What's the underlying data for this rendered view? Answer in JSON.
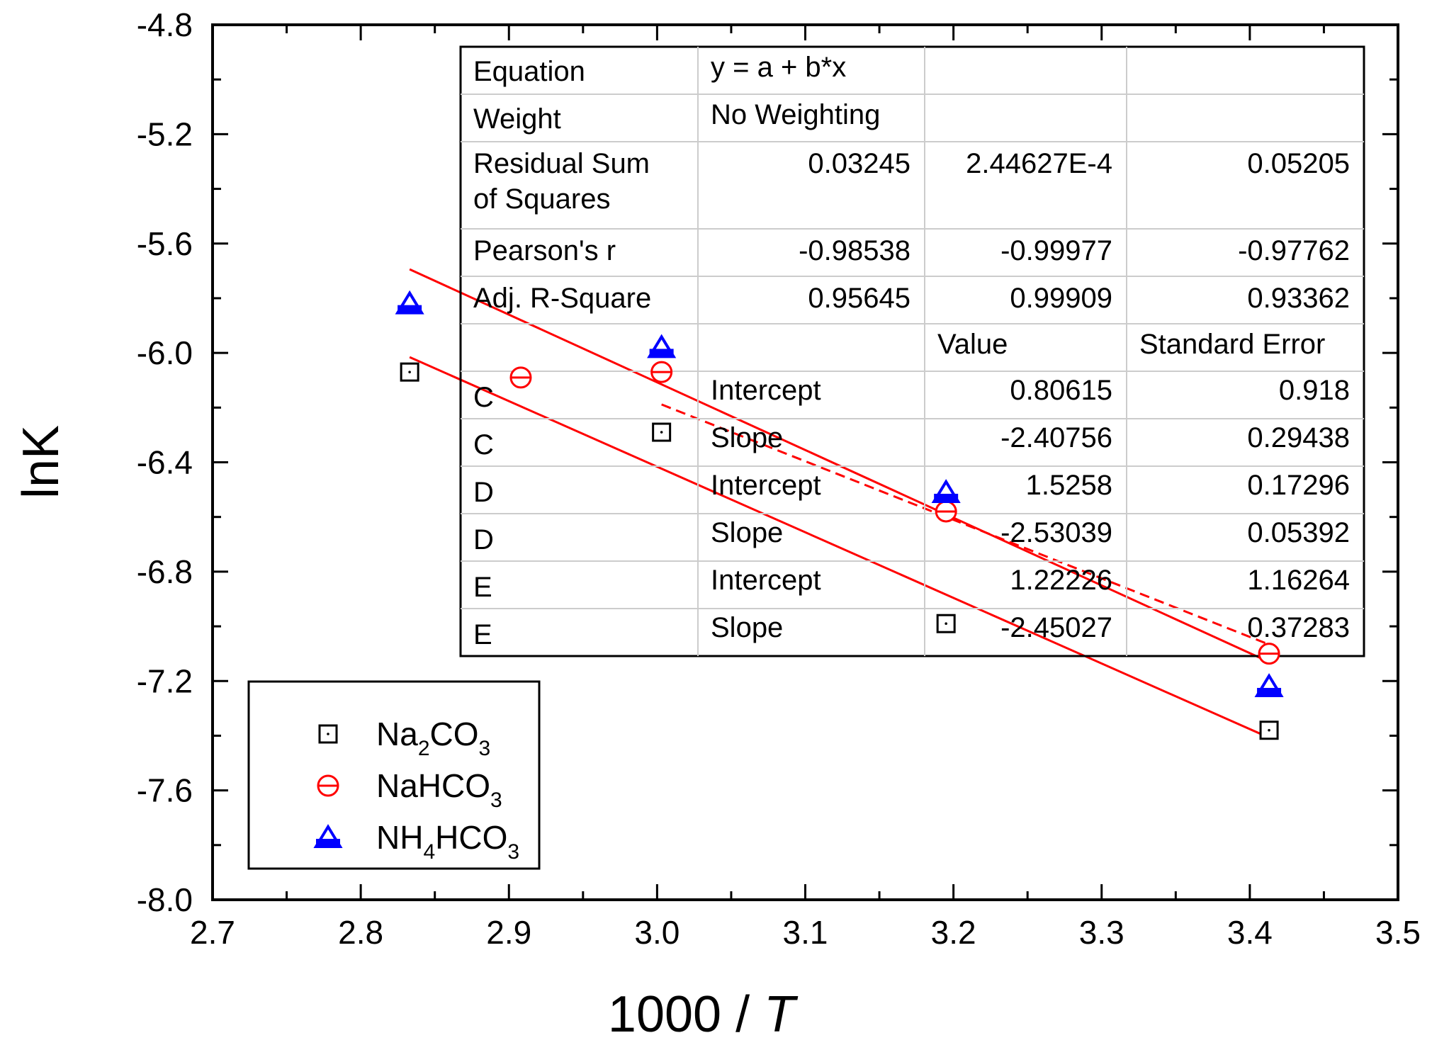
{
  "chart_data": {
    "type": "scatter",
    "xlabel_prefix": "1000 / ",
    "xlabel_var": "T",
    "ylabel": "lnK",
    "xlim": [
      2.7,
      3.5
    ],
    "ylim": [
      -8.0,
      -4.8
    ],
    "xticks": [
      "2.7",
      "2.8",
      "2.9",
      "3.0",
      "3.1",
      "3.2",
      "3.3",
      "3.4",
      "3.5"
    ],
    "yticks": [
      "-4.8",
      "-5.2",
      "-5.6",
      "-6.0",
      "-6.4",
      "-6.8",
      "-7.2",
      "-7.6",
      "-8.0"
    ],
    "series": [
      {
        "name": "Na2CO3",
        "legend": {
          "base": "Na",
          "sub1": "2",
          "mid": "CO",
          "sub2": "3"
        },
        "marker": "square",
        "color": "#000000",
        "x": [
          2.833,
          3.003,
          3.195,
          3.413
        ],
        "y": [
          -6.07,
          -6.29,
          -6.99,
          -7.38
        ],
        "fit": {
          "intercept": 0.80615,
          "slope": -2.40756,
          "x_range": [
            2.833,
            3.413
          ],
          "style": "solid"
        }
      },
      {
        "name": "NaHCO3",
        "legend": {
          "base": "NaHCO",
          "sub1": "",
          "mid": "",
          "sub2": "3"
        },
        "marker": "circle",
        "color": "#ff0000",
        "x": [
          2.908,
          3.003,
          3.195,
          3.413
        ],
        "y": [
          -6.09,
          -6.07,
          -6.58,
          -7.1
        ],
        "fit": {
          "intercept": 1.5258,
          "slope": -2.53039,
          "x_range": [
            3.003,
            3.413
          ],
          "style": "dashed"
        }
      },
      {
        "name": "NH4HCO3",
        "legend": {
          "base": "NH",
          "sub1": "4",
          "mid": "HCO",
          "sub2": "3"
        },
        "marker": "triangle",
        "color": "#0000ff",
        "x": [
          2.833,
          3.003,
          3.195,
          3.413
        ],
        "y": [
          -5.82,
          -5.98,
          -6.51,
          -7.22
        ],
        "fit": {
          "intercept": 1.22226,
          "slope": -2.45027,
          "x_range": [
            2.833,
            3.413
          ],
          "style": "solid"
        }
      }
    ],
    "fit_table": {
      "rows": [
        [
          "Equation",
          "y = a + b*x",
          "",
          ""
        ],
        [
          "Weight",
          "No Weighting",
          "",
          ""
        ],
        [
          "Residual Sum\nof Squares",
          "0.03245",
          "2.44627E-4",
          "0.05205"
        ],
        [
          "Pearson's r",
          "-0.98538",
          "-0.99977",
          "-0.97762"
        ],
        [
          "Adj. R-Square",
          "0.95645",
          "0.99909",
          "0.93362"
        ],
        [
          "",
          "",
          "Value",
          "Standard Error"
        ],
        [
          "C",
          "Intercept",
          "0.80615",
          "0.918"
        ],
        [
          "C",
          "Slope",
          "-2.40756",
          "0.29438"
        ],
        [
          "D",
          "Intercept",
          "1.5258",
          "0.17296"
        ],
        [
          "D",
          "Slope",
          "-2.53039",
          "0.05392"
        ],
        [
          "E",
          "Intercept",
          "1.22226",
          "1.16264"
        ],
        [
          "E",
          "Slope",
          "-2.45027",
          "0.37283"
        ]
      ]
    }
  }
}
